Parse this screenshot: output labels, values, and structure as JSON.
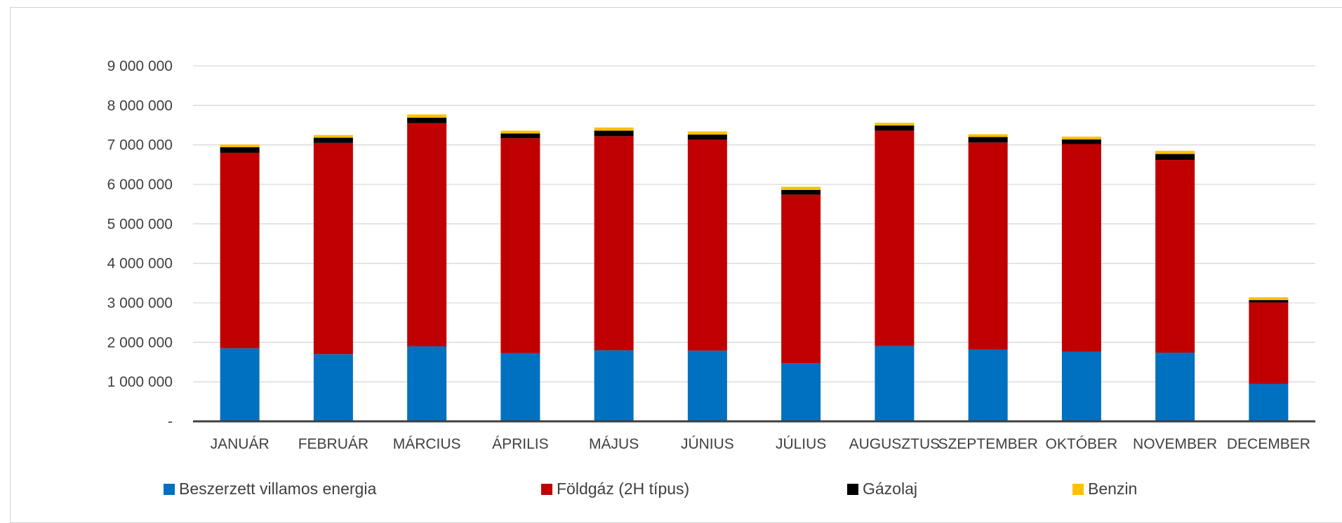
{
  "chart_data": {
    "type": "bar",
    "stacked": true,
    "title": "",
    "xlabel": "",
    "ylabel": "",
    "ylim": [
      0,
      9000000
    ],
    "yticks": [
      0,
      1000000,
      2000000,
      3000000,
      4000000,
      5000000,
      6000000,
      7000000,
      8000000,
      9000000
    ],
    "ytick_labels": [
      "-",
      "1 000 000",
      "2 000 000",
      "3 000 000",
      "4 000 000",
      "5 000 000",
      "6 000 000",
      "7 000 000",
      "8 000 000",
      "9 000 000"
    ],
    "grid": true,
    "legend_position": "bottom",
    "categories": [
      "JANUÁR",
      "FEBRUÁR",
      "MÁRCIUS",
      "ÁPRILIS",
      "MÁJUS",
      "JÚNIUS",
      "JÚLIUS",
      "AUGUSZTUS",
      "SZEPTEMBER",
      "OKTÓBER",
      "NOVEMBER",
      "DECEMBER"
    ],
    "series": [
      {
        "name": "Beszerzett villamos energia",
        "color": "#0070C0",
        "values": [
          1850000,
          1700000,
          1900000,
          1730000,
          1800000,
          1790000,
          1470000,
          1910000,
          1820000,
          1760000,
          1740000,
          950000
        ]
      },
      {
        "name": "Földgáz (2H típus)",
        "color": "#C00000",
        "values": [
          4950000,
          5350000,
          5650000,
          5440000,
          5420000,
          5340000,
          4270000,
          5450000,
          5240000,
          5260000,
          4880000,
          2060000
        ]
      },
      {
        "name": "Gázolaj",
        "color": "#000000",
        "values": [
          140000,
          130000,
          140000,
          120000,
          140000,
          130000,
          120000,
          130000,
          140000,
          120000,
          150000,
          60000
        ]
      },
      {
        "name": "Benzin",
        "color": "#FFC000",
        "values": [
          70000,
          70000,
          80000,
          70000,
          80000,
          80000,
          80000,
          70000,
          70000,
          70000,
          80000,
          70000
        ]
      }
    ]
  }
}
